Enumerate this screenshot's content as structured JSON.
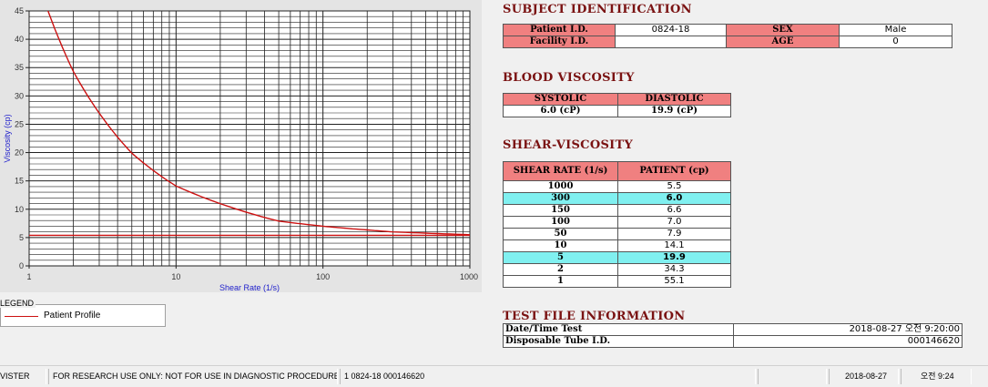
{
  "chart_data": {
    "type": "line",
    "xscale": "log",
    "xlim": [
      1,
      1000
    ],
    "ylim": [
      0,
      45
    ],
    "xticks": [
      1,
      10,
      100,
      1000
    ],
    "yticks": [
      0,
      5,
      10,
      15,
      20,
      25,
      30,
      35,
      40,
      45
    ],
    "xlabel": "Shear Rate (1/s)",
    "ylabel": "Viscosity (cp)",
    "grid": true,
    "series": [
      {
        "name": "Patient Profile",
        "color": "#cc1111",
        "x": [
          1,
          2,
          5,
          10,
          50,
          100,
          150,
          300,
          1000
        ],
        "y": [
          55.1,
          34.3,
          19.9,
          14.1,
          7.9,
          7.0,
          6.6,
          6.0,
          5.5
        ]
      },
      {
        "color": "#cc1111",
        "x": [
          1,
          1000
        ],
        "y": [
          5.4,
          5.4
        ]
      }
    ]
  },
  "legend": {
    "title": "LEGEND",
    "items": [
      {
        "label": "Patient Profile",
        "color": "#cc1111"
      }
    ]
  },
  "subject": {
    "title": "SUBJECT IDENTIFICATION",
    "patient_id_label": "Patient I.D.",
    "patient_id": "0824-18",
    "sex_label": "SEX",
    "sex": "Male",
    "facility_label": "Facility I.D.",
    "facility": "",
    "age_label": "AGE",
    "age": "0"
  },
  "blood": {
    "title": "BLOOD VISCOSITY",
    "systolic_label": "SYSTOLIC",
    "diastolic_label": "DIASTOLIC",
    "systolic": "6.0 (cP)",
    "diastolic": "19.9 (cP)"
  },
  "shear": {
    "title": "SHEAR-VISCOSITY",
    "col1": "SHEAR RATE (1/s)",
    "col2": "PATIENT (cp)",
    "rows": [
      {
        "rate": "1000",
        "value": "5.5",
        "hl": false
      },
      {
        "rate": "300",
        "value": "6.0",
        "hl": true
      },
      {
        "rate": "150",
        "value": "6.6",
        "hl": false
      },
      {
        "rate": "100",
        "value": "7.0",
        "hl": false
      },
      {
        "rate": "50",
        "value": "7.9",
        "hl": false
      },
      {
        "rate": "10",
        "value": "14.1",
        "hl": false
      },
      {
        "rate": "5",
        "value": "19.9",
        "hl": true
      },
      {
        "rate": "2",
        "value": "34.3",
        "hl": false
      },
      {
        "rate": "1",
        "value": "55.1",
        "hl": false
      }
    ]
  },
  "testfile": {
    "title": "TEST FILE INFORMATION",
    "datetime_label": "Date/Time Test",
    "datetime": "2018-08-27  오전 9:20:00",
    "tube_label": "Disposable Tube I.D.",
    "tube": "000146620"
  },
  "status": {
    "app": "VISTER",
    "notice": "FOR RESEARCH USE ONLY: NOT FOR USE IN DIAGNOSTIC PROCEDURES",
    "file": "1  0824-18  000146620",
    "blank": "",
    "date": "2018-08-27",
    "time": "오전 9:24"
  }
}
